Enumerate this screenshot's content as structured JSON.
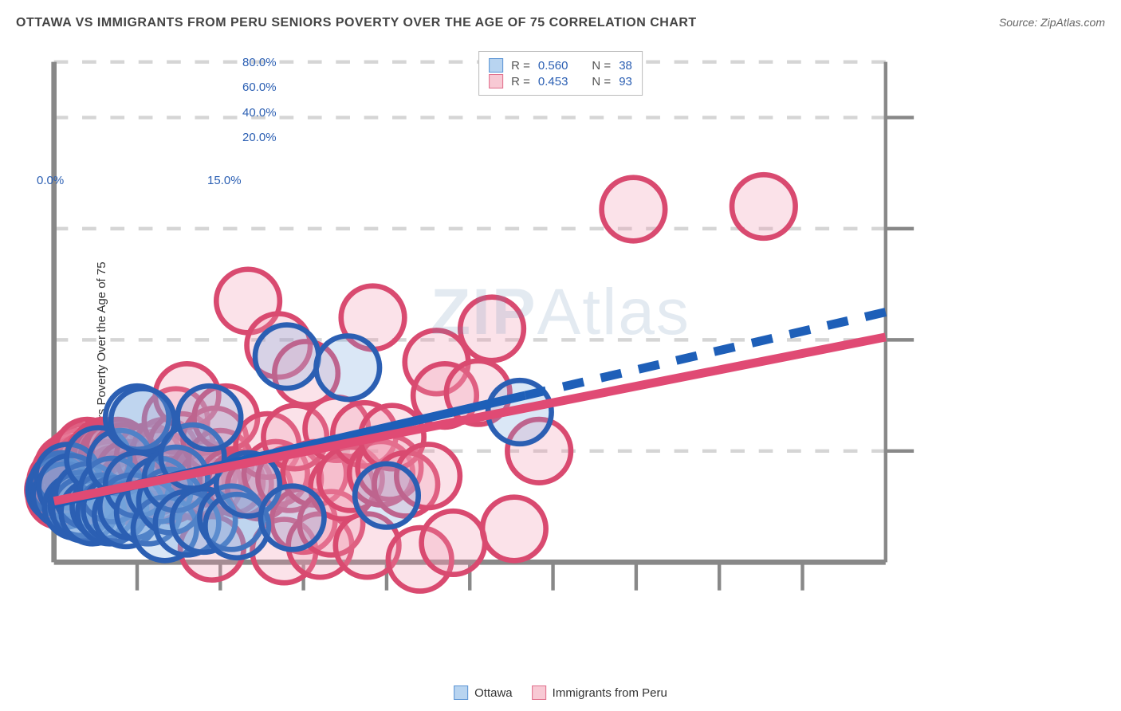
{
  "title": "OTTAWA VS IMMIGRANTS FROM PERU SENIORS POVERTY OVER THE AGE OF 75 CORRELATION CHART",
  "source": "Source: ZipAtlas.com",
  "watermark": {
    "bold": "ZIP",
    "rest": "Atlas"
  },
  "ylabel": "Seniors Poverty Over the Age of 75",
  "chart": {
    "type": "scatter",
    "xlim": [
      0,
      15
    ],
    "ylim": [
      0,
      90
    ],
    "x_ticks": [
      0,
      15
    ],
    "x_tick_labels": [
      "0.0%",
      "15.0%"
    ],
    "x_minor_ticks": [
      1.5,
      3,
      4.5,
      6,
      7.5,
      9,
      10.5,
      12,
      13.5
    ],
    "y_ticks": [
      20,
      40,
      60,
      80
    ],
    "y_tick_labels": [
      "20.0%",
      "40.0%",
      "60.0%",
      "80.0%"
    ],
    "y_gridlines": [
      20,
      40,
      60,
      80,
      90
    ],
    "background_color": "#ffffff",
    "grid_color": "#d5d5d5",
    "grid_dash": "4,4",
    "axis_color": "#888888",
    "tick_label_color": "#2b5fb3",
    "marker_radius": 9,
    "marker_stroke_width": 1.5,
    "marker_fill_opacity": 0.28,
    "line_width": 2.5,
    "dash_pattern": "6,5"
  },
  "series": [
    {
      "name": "Ottawa",
      "swatch_fill": "#b8d4f0",
      "swatch_stroke": "#5a93d4",
      "marker_fill": "#7aa8dd",
      "marker_stroke": "#2b5fb3",
      "line_color": "#1e5fb8",
      "R_label": "R =",
      "R": "0.560",
      "N_label": "N =",
      "N": "38",
      "regression": {
        "solid": {
          "x1": 0,
          "y1": 10.5,
          "x2": 8.5,
          "y2": 30
        },
        "dashed": {
          "x1": 8.5,
          "y1": 30,
          "x2": 15,
          "y2": 45
        }
      },
      "points": [
        {
          "x": 0.1,
          "y": 13
        },
        {
          "x": 0.15,
          "y": 14
        },
        {
          "x": 0.2,
          "y": 12
        },
        {
          "x": 0.25,
          "y": 15.5
        },
        {
          "x": 0.3,
          "y": 13.5
        },
        {
          "x": 0.4,
          "y": 10
        },
        {
          "x": 0.5,
          "y": 10.5
        },
        {
          "x": 0.55,
          "y": 9.5
        },
        {
          "x": 0.6,
          "y": 12
        },
        {
          "x": 0.7,
          "y": 9
        },
        {
          "x": 0.8,
          "y": 18.5
        },
        {
          "x": 0.9,
          "y": 10
        },
        {
          "x": 1.0,
          "y": 9
        },
        {
          "x": 1.05,
          "y": 13
        },
        {
          "x": 1.1,
          "y": 9.5
        },
        {
          "x": 1.2,
          "y": 18
        },
        {
          "x": 1.3,
          "y": 8.5
        },
        {
          "x": 1.4,
          "y": 10
        },
        {
          "x": 1.5,
          "y": 14
        },
        {
          "x": 1.5,
          "y": 26
        },
        {
          "x": 1.6,
          "y": 25.5
        },
        {
          "x": 1.7,
          "y": 9
        },
        {
          "x": 1.9,
          "y": 13
        },
        {
          "x": 2.0,
          "y": 6
        },
        {
          "x": 2.1,
          "y": 11
        },
        {
          "x": 2.2,
          "y": 15
        },
        {
          "x": 2.4,
          "y": 7
        },
        {
          "x": 2.5,
          "y": 19
        },
        {
          "x": 2.7,
          "y": 7.5
        },
        {
          "x": 2.8,
          "y": 26
        },
        {
          "x": 3.2,
          "y": 8
        },
        {
          "x": 3.3,
          "y": 6.5
        },
        {
          "x": 3.5,
          "y": 14
        },
        {
          "x": 4.2,
          "y": 37
        },
        {
          "x": 4.3,
          "y": 8
        },
        {
          "x": 5.3,
          "y": 35
        },
        {
          "x": 6.0,
          "y": 12
        },
        {
          "x": 8.4,
          "y": 27
        }
      ]
    },
    {
      "name": "Immigrants from Peru",
      "swatch_fill": "#f8c9d4",
      "swatch_stroke": "#e06d8a",
      "marker_fill": "#f098af",
      "marker_stroke": "#d94a70",
      "line_color": "#e04a74",
      "R_label": "R =",
      "R": "0.453",
      "N_label": "N =",
      "N": "93",
      "regression": {
        "solid": {
          "x1": 0,
          "y1": 11,
          "x2": 15,
          "y2": 40.5
        },
        "dashed": null
      },
      "points": [
        {
          "x": 0.08,
          "y": 13
        },
        {
          "x": 0.1,
          "y": 12
        },
        {
          "x": 0.12,
          "y": 14.5
        },
        {
          "x": 0.15,
          "y": 13
        },
        {
          "x": 0.18,
          "y": 15
        },
        {
          "x": 0.2,
          "y": 12.5
        },
        {
          "x": 0.2,
          "y": 16
        },
        {
          "x": 0.25,
          "y": 14
        },
        {
          "x": 0.25,
          "y": 17
        },
        {
          "x": 0.3,
          "y": 13
        },
        {
          "x": 0.3,
          "y": 15.5
        },
        {
          "x": 0.35,
          "y": 14
        },
        {
          "x": 0.38,
          "y": 18
        },
        {
          "x": 0.4,
          "y": 16.5
        },
        {
          "x": 0.45,
          "y": 13
        },
        {
          "x": 0.5,
          "y": 17
        },
        {
          "x": 0.5,
          "y": 19
        },
        {
          "x": 0.55,
          "y": 14
        },
        {
          "x": 0.6,
          "y": 17.5
        },
        {
          "x": 0.6,
          "y": 20
        },
        {
          "x": 0.65,
          "y": 15
        },
        {
          "x": 0.7,
          "y": 15.5
        },
        {
          "x": 0.75,
          "y": 13
        },
        {
          "x": 0.8,
          "y": 19
        },
        {
          "x": 0.85,
          "y": 13.5
        },
        {
          "x": 0.9,
          "y": 18
        },
        {
          "x": 0.9,
          "y": 20
        },
        {
          "x": 0.95,
          "y": 19.5
        },
        {
          "x": 1.0,
          "y": 16
        },
        {
          "x": 1.05,
          "y": 19
        },
        {
          "x": 1.1,
          "y": 15
        },
        {
          "x": 1.1,
          "y": 14
        },
        {
          "x": 1.15,
          "y": 20
        },
        {
          "x": 1.2,
          "y": 14
        },
        {
          "x": 1.25,
          "y": 19
        },
        {
          "x": 1.3,
          "y": 13
        },
        {
          "x": 1.35,
          "y": 16
        },
        {
          "x": 1.4,
          "y": 14
        },
        {
          "x": 1.5,
          "y": 12.5
        },
        {
          "x": 1.6,
          "y": 15
        },
        {
          "x": 1.7,
          "y": 19
        },
        {
          "x": 1.8,
          "y": 13
        },
        {
          "x": 1.85,
          "y": 14.5
        },
        {
          "x": 1.9,
          "y": 18
        },
        {
          "x": 2.0,
          "y": 20
        },
        {
          "x": 2.1,
          "y": 13
        },
        {
          "x": 2.2,
          "y": 25.5
        },
        {
          "x": 2.3,
          "y": 21
        },
        {
          "x": 2.4,
          "y": 30
        },
        {
          "x": 2.5,
          "y": 14
        },
        {
          "x": 2.6,
          "y": 13.5
        },
        {
          "x": 2.7,
          "y": 16
        },
        {
          "x": 2.8,
          "y": 14
        },
        {
          "x": 2.85,
          "y": 2.5
        },
        {
          "x": 2.9,
          "y": 22
        },
        {
          "x": 3.0,
          "y": 18
        },
        {
          "x": 3.1,
          "y": 26
        },
        {
          "x": 3.2,
          "y": 14.5
        },
        {
          "x": 3.35,
          "y": 14
        },
        {
          "x": 3.5,
          "y": 47
        },
        {
          "x": 3.7,
          "y": 13.5
        },
        {
          "x": 3.85,
          "y": 21
        },
        {
          "x": 4.0,
          "y": 16
        },
        {
          "x": 4.05,
          "y": 39
        },
        {
          "x": 4.15,
          "y": 2
        },
        {
          "x": 4.25,
          "y": 15
        },
        {
          "x": 4.35,
          "y": 22.5
        },
        {
          "x": 4.5,
          "y": 7.5
        },
        {
          "x": 4.55,
          "y": 34
        },
        {
          "x": 4.7,
          "y": 16
        },
        {
          "x": 4.8,
          "y": 3
        },
        {
          "x": 5.0,
          "y": 7
        },
        {
          "x": 5.1,
          "y": 24
        },
        {
          "x": 5.2,
          "y": 13.5
        },
        {
          "x": 5.35,
          "y": 15
        },
        {
          "x": 5.6,
          "y": 23
        },
        {
          "x": 5.65,
          "y": 3
        },
        {
          "x": 5.75,
          "y": 44
        },
        {
          "x": 5.9,
          "y": 16
        },
        {
          "x": 6.05,
          "y": 17
        },
        {
          "x": 6.1,
          "y": 22.5
        },
        {
          "x": 6.35,
          "y": 14
        },
        {
          "x": 6.6,
          "y": 0.5
        },
        {
          "x": 6.75,
          "y": 15.5
        },
        {
          "x": 6.9,
          "y": 36
        },
        {
          "x": 7.05,
          "y": 30
        },
        {
          "x": 7.2,
          "y": 3.5
        },
        {
          "x": 7.65,
          "y": 30.5
        },
        {
          "x": 7.9,
          "y": 42
        },
        {
          "x": 8.3,
          "y": 6
        },
        {
          "x": 8.75,
          "y": 20
        },
        {
          "x": 10.45,
          "y": 63.5
        },
        {
          "x": 12.8,
          "y": 64
        }
      ]
    }
  ],
  "bottom_legend": [
    {
      "label": "Ottawa",
      "fill": "#b8d4f0",
      "stroke": "#5a93d4"
    },
    {
      "label": "Immigrants from Peru",
      "fill": "#f8c9d4",
      "stroke": "#e06d8a"
    }
  ]
}
